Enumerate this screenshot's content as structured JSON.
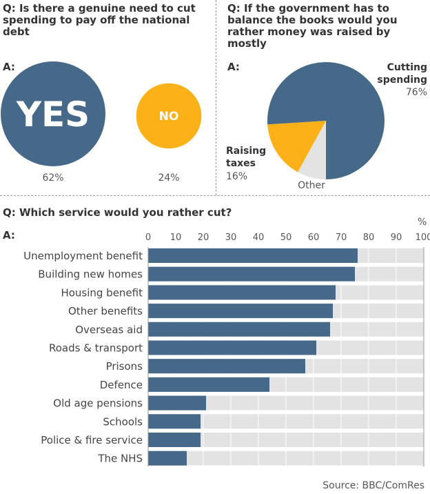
{
  "colors": {
    "blue": "#46698a",
    "orange": "#fbb117",
    "grey": "#e3e3e3"
  },
  "chart_data": [
    {
      "type": "bubble",
      "title": "Q: Is there a genuine need to cut spending to pay off the national debt",
      "answer_label": "A:",
      "categories": [
        "YES",
        "NO"
      ],
      "values": [
        62,
        24
      ],
      "value_labels": [
        "62%",
        "24%"
      ]
    },
    {
      "type": "pie",
      "title": "Q: If the government has to balance the books would you rather money was raised by mostly",
      "answer_label": "A:",
      "slices": [
        {
          "label": "Cutting spending",
          "value": 76,
          "value_label": "76%"
        },
        {
          "label": "Raising taxes",
          "value": 16,
          "value_label": "16%"
        },
        {
          "label": "Other",
          "value": 8
        }
      ]
    },
    {
      "type": "bar",
      "orientation": "horizontal",
      "title": "Q: Which service would you rather cut?",
      "answer_label": "A:",
      "unit": "%",
      "xlim": [
        0,
        100
      ],
      "ticks": [
        0,
        10,
        20,
        30,
        40,
        50,
        60,
        70,
        80,
        90,
        100
      ],
      "grid": true,
      "categories": [
        "Unemployment benefit",
        "Building new homes",
        "Housing benefit",
        "Other benefits",
        "Overseas aid",
        "Roads & transport",
        "Prisons",
        "Defence",
        "Old age pensions",
        "Schools",
        "Police & fire service",
        "The NHS"
      ],
      "values": [
        76,
        75,
        68,
        67,
        66,
        61,
        57,
        44,
        21,
        19,
        19,
        14
      ]
    }
  ],
  "source": "Source: BBC/ComRes"
}
